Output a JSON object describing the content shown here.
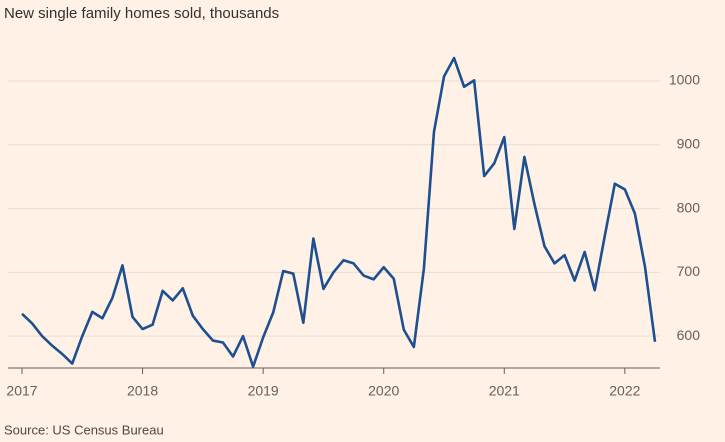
{
  "chart_data": {
    "type": "line",
    "title": "New single family homes sold, thousands",
    "source": "Source: US Census Bureau",
    "categories": [
      "2017",
      null,
      null,
      null,
      null,
      null,
      null,
      null,
      null,
      null,
      null,
      null,
      "2018",
      null,
      null,
      null,
      null,
      null,
      null,
      null,
      null,
      null,
      null,
      null,
      "2019",
      null,
      null,
      null,
      null,
      null,
      null,
      null,
      null,
      null,
      null,
      null,
      "2020",
      null,
      null,
      null,
      null,
      null,
      null,
      null,
      null,
      null,
      null,
      null,
      "2021",
      null,
      null,
      null,
      null,
      null,
      null,
      null,
      null,
      null,
      null,
      null,
      "2022",
      null,
      null,
      null
    ],
    "series": [
      {
        "name": "New single family homes sold",
        "color": "#1d4f91",
        "values": [
          635,
          620,
          600,
          585,
          572,
          557,
          600,
          638,
          628,
          660,
          711,
          630,
          611,
          618,
          671,
          656,
          675,
          632,
          611,
          593,
          590,
          568,
          600,
          552,
          598,
          637,
          702,
          698,
          621,
          753,
          674,
          700,
          719,
          714,
          695,
          689,
          708,
          690,
          610,
          583,
          706,
          920,
          1007,
          1036,
          991,
          1001,
          851,
          871,
          912,
          768,
          881,
          807,
          741,
          714,
          727,
          687,
          732,
          672,
          757,
          839,
          830,
          792,
          709,
          591
        ]
      }
    ],
    "ylim": [
      550,
      1080
    ],
    "yticks": [
      600,
      700,
      800,
      900,
      1000
    ],
    "grid": true
  }
}
